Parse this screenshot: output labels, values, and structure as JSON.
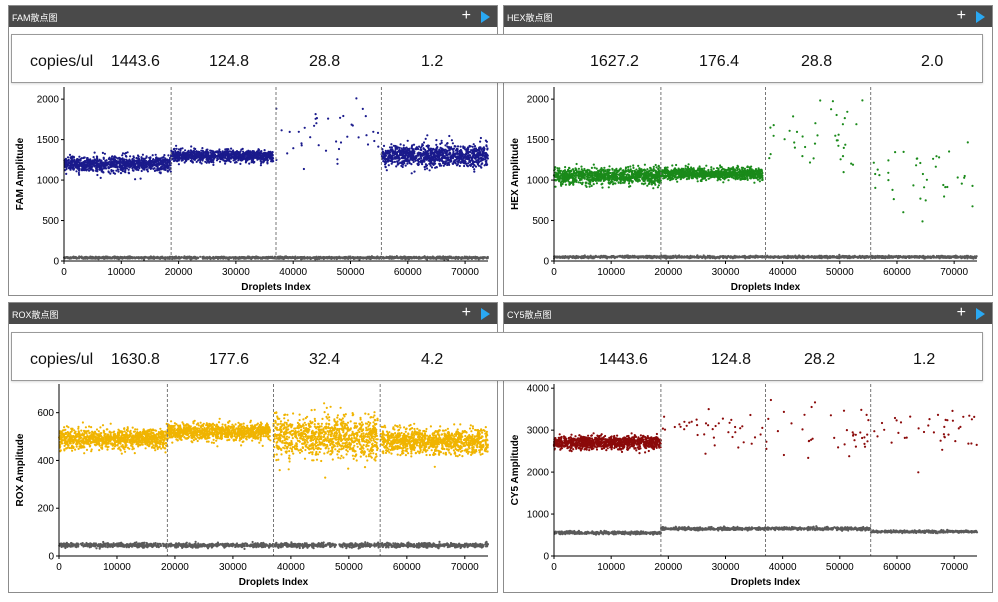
{
  "panels": [
    {
      "title": "FAM散点图",
      "plus": "+"
    },
    {
      "title": "HEX散点图",
      "plus": "+"
    },
    {
      "title": "ROX散点图",
      "plus": "+"
    },
    {
      "title": "CY5散点图",
      "plus": "+"
    }
  ],
  "copies_rows": [
    {
      "label": "copies/ul",
      "values": [
        "1443.6",
        "124.8",
        "28.8",
        "1.2",
        "1627.2",
        "176.4",
        "28.8",
        "2.0"
      ]
    },
    {
      "label": "copies/ul",
      "values": [
        "1630.8",
        "177.6",
        "32.4",
        "4.2",
        "1443.6",
        "124.8",
        "28.2",
        "1.2"
      ]
    }
  ],
  "chart_data": [
    {
      "type": "scatter",
      "title": "FAM散点图",
      "xlabel": "Droplets Index",
      "ylabel": "FAM Amplitude",
      "xlim": [
        0,
        74000
      ],
      "ylim": [
        0,
        2150
      ],
      "xticks": [
        0,
        10000,
        20000,
        30000,
        40000,
        50000,
        60000,
        70000
      ],
      "yticks": [
        0,
        500,
        1000,
        1500,
        2000
      ],
      "dividers": [
        18700,
        37000,
        55400
      ],
      "color": "#1a1a8c",
      "neg_color": "#5a5a5a",
      "clusters": [
        {
          "name": "positive",
          "x_range": [
            0,
            18700
          ],
          "y_center": 1200,
          "y_spread": 100
        },
        {
          "name": "positive",
          "x_range": [
            18700,
            36500
          ],
          "y_center": 1300,
          "y_spread": 80
        },
        {
          "name": "positive",
          "x_range": [
            37000,
            55000
          ],
          "y_center": 1550,
          "y_spread": 240
        },
        {
          "name": "positive",
          "x_range": [
            55400,
            74000
          ],
          "y_center": 1300,
          "y_spread": 150
        },
        {
          "name": "negative",
          "x_range": [
            0,
            74000
          ],
          "y_center": 40,
          "y_spread": 15
        }
      ]
    },
    {
      "type": "scatter",
      "title": "HEX散点图",
      "xlabel": "Droplets Index",
      "ylabel": "HEX Amplitude",
      "xlim": [
        0,
        74000
      ],
      "ylim": [
        0,
        2150
      ],
      "xticks": [
        0,
        10000,
        20000,
        30000,
        40000,
        50000,
        60000,
        70000
      ],
      "yticks": [
        0,
        500,
        1000,
        1500,
        2000
      ],
      "dividers": [
        18700,
        37000,
        55400
      ],
      "color": "#1a8a1a",
      "neg_color": "#5a5a5a",
      "clusters": [
        {
          "name": "positive",
          "x_range": [
            0,
            18700
          ],
          "y_center": 1050,
          "y_spread": 110
        },
        {
          "name": "positive",
          "x_range": [
            18700,
            36500
          ],
          "y_center": 1080,
          "y_spread": 80
        },
        {
          "name": "positive",
          "x_range": [
            37000,
            55000
          ],
          "y_center": 1450,
          "y_spread": 300
        },
        {
          "name": "positive",
          "x_range": [
            55400,
            74000
          ],
          "y_center": 1000,
          "y_spread": 300
        },
        {
          "name": "negative",
          "x_range": [
            0,
            74000
          ],
          "y_center": 50,
          "y_spread": 15
        }
      ]
    },
    {
      "type": "scatter",
      "title": "ROX散点图",
      "xlabel": "Droplets Index",
      "ylabel": "ROX Amplitude",
      "xlim": [
        0,
        74000
      ],
      "ylim": [
        0,
        720
      ],
      "xticks": [
        0,
        10000,
        20000,
        30000,
        40000,
        50000,
        60000,
        70000
      ],
      "yticks": [
        0,
        200,
        400,
        600
      ],
      "dividers": [
        18700,
        37000,
        55400
      ],
      "color": "#f0b400",
      "neg_color": "#5a5a5a",
      "clusters": [
        {
          "name": "positive",
          "x_range": [
            0,
            18700
          ],
          "y_center": 490,
          "y_spread": 45
        },
        {
          "name": "positive",
          "x_range": [
            18700,
            36500
          ],
          "y_center": 520,
          "y_spread": 40
        },
        {
          "name": "positive",
          "x_range": [
            37000,
            55000
          ],
          "y_center": 500,
          "y_spread": 100
        },
        {
          "name": "positive",
          "x_range": [
            55400,
            74000
          ],
          "y_center": 480,
          "y_spread": 60
        },
        {
          "name": "negative",
          "x_range": [
            0,
            74000
          ],
          "y_center": 45,
          "y_spread": 10
        }
      ]
    },
    {
      "type": "scatter",
      "title": "CY5散点图",
      "xlabel": "Droplets Index",
      "ylabel": "CY5 Amplitude",
      "xlim": [
        0,
        74000
      ],
      "ylim": [
        0,
        4100
      ],
      "xticks": [
        0,
        10000,
        20000,
        30000,
        40000,
        50000,
        60000,
        70000
      ],
      "yticks": [
        0,
        1000,
        2000,
        3000,
        4000
      ],
      "dividers": [
        18700,
        37000,
        55400
      ],
      "color": "#8b0a0a",
      "neg_color": "#5a5a5a",
      "clusters": [
        {
          "name": "positive",
          "x_range": [
            0,
            18700
          ],
          "y_center": 2700,
          "y_spread": 170
        },
        {
          "name": "positive",
          "x_range": [
            18700,
            36500
          ],
          "y_center": 3000,
          "y_spread": 220
        },
        {
          "name": "positive",
          "x_range": [
            37000,
            55000
          ],
          "y_center": 2900,
          "y_spread": 450
        },
        {
          "name": "positive",
          "x_range": [
            55400,
            74000
          ],
          "y_center": 3000,
          "y_spread": 400
        },
        {
          "name": "negative",
          "x_range": [
            0,
            18700
          ],
          "y_center": 550,
          "y_spread": 40
        },
        {
          "name": "negative",
          "x_range": [
            18700,
            55400
          ],
          "y_center": 650,
          "y_spread": 40
        },
        {
          "name": "negative",
          "x_range": [
            55400,
            74000
          ],
          "y_center": 580,
          "y_spread": 30
        }
      ]
    }
  ]
}
